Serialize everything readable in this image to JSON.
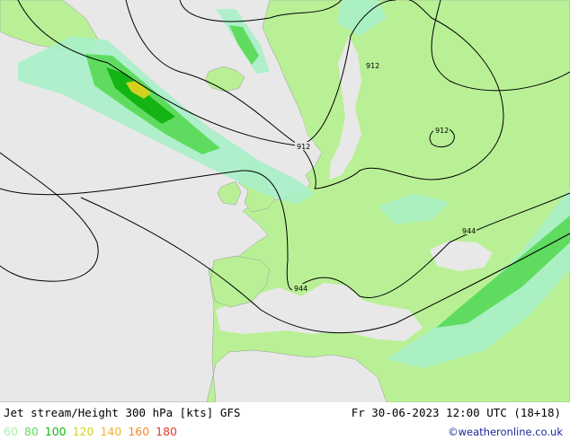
{
  "title": "Jet stream/Height 300 hPa [kts] GFS",
  "valid_time": "Fr 30-06-2023 12:00 UTC (18+18)",
  "credit": "©weatheronline.co.uk",
  "legend": [
    {
      "label": "60",
      "color": "#a8f0a8"
    },
    {
      "label": "80",
      "color": "#5fdc5f"
    },
    {
      "label": "100",
      "color": "#14b414"
    },
    {
      "label": "120",
      "color": "#d2d21e"
    },
    {
      "label": "140",
      "color": "#f0b428"
    },
    {
      "label": "160",
      "color": "#f08c28"
    },
    {
      "label": "180",
      "color": "#e63c28"
    }
  ],
  "contour_labels": [
    "912",
    "912",
    "912",
    "944",
    "944"
  ],
  "colors": {
    "sea": "#e8e8e8",
    "land": "#b9f096",
    "jet_60": "#a8f0c8",
    "jet_80": "#5fdc5f",
    "jet_100": "#14b414",
    "jet_120": "#d2d21e",
    "contour": "#000000",
    "border": "#8c8c8c"
  }
}
